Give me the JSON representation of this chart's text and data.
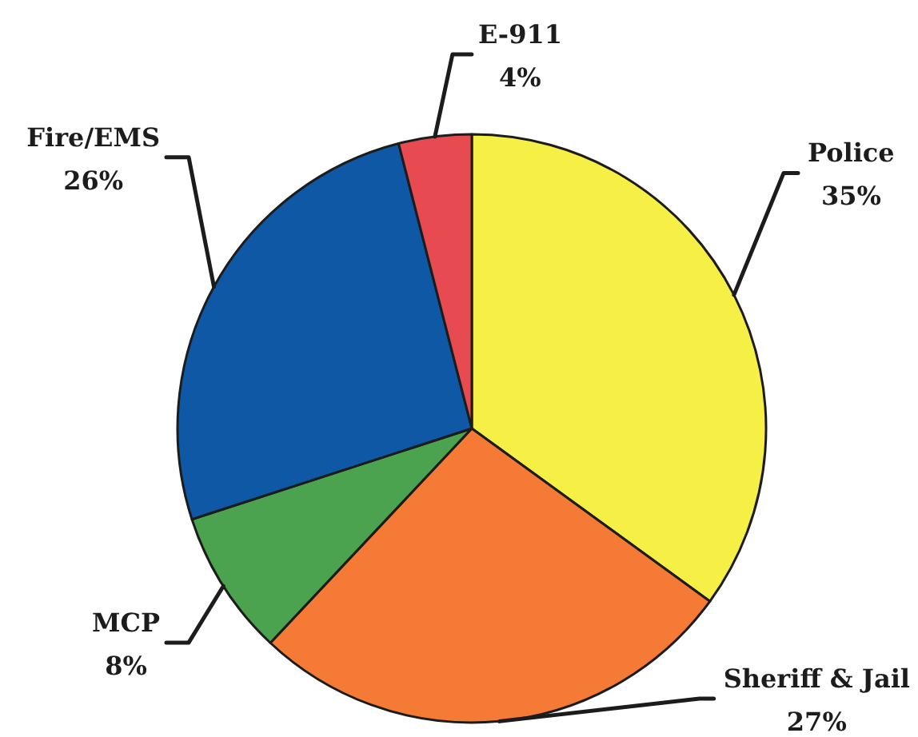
{
  "chart_data": {
    "type": "pie",
    "categories": [
      "Police",
      "Sheriff & Jail",
      "MCP",
      "Fire/EMS",
      "E-911"
    ],
    "values": [
      35,
      27,
      8,
      26,
      4
    ],
    "colors": [
      "#f6ef45",
      "#f47a36",
      "#4ba24f",
      "#0f58a6",
      "#e74a50"
    ],
    "value_labels": [
      "35%",
      "27%",
      "8%",
      "26%",
      "4%"
    ]
  }
}
